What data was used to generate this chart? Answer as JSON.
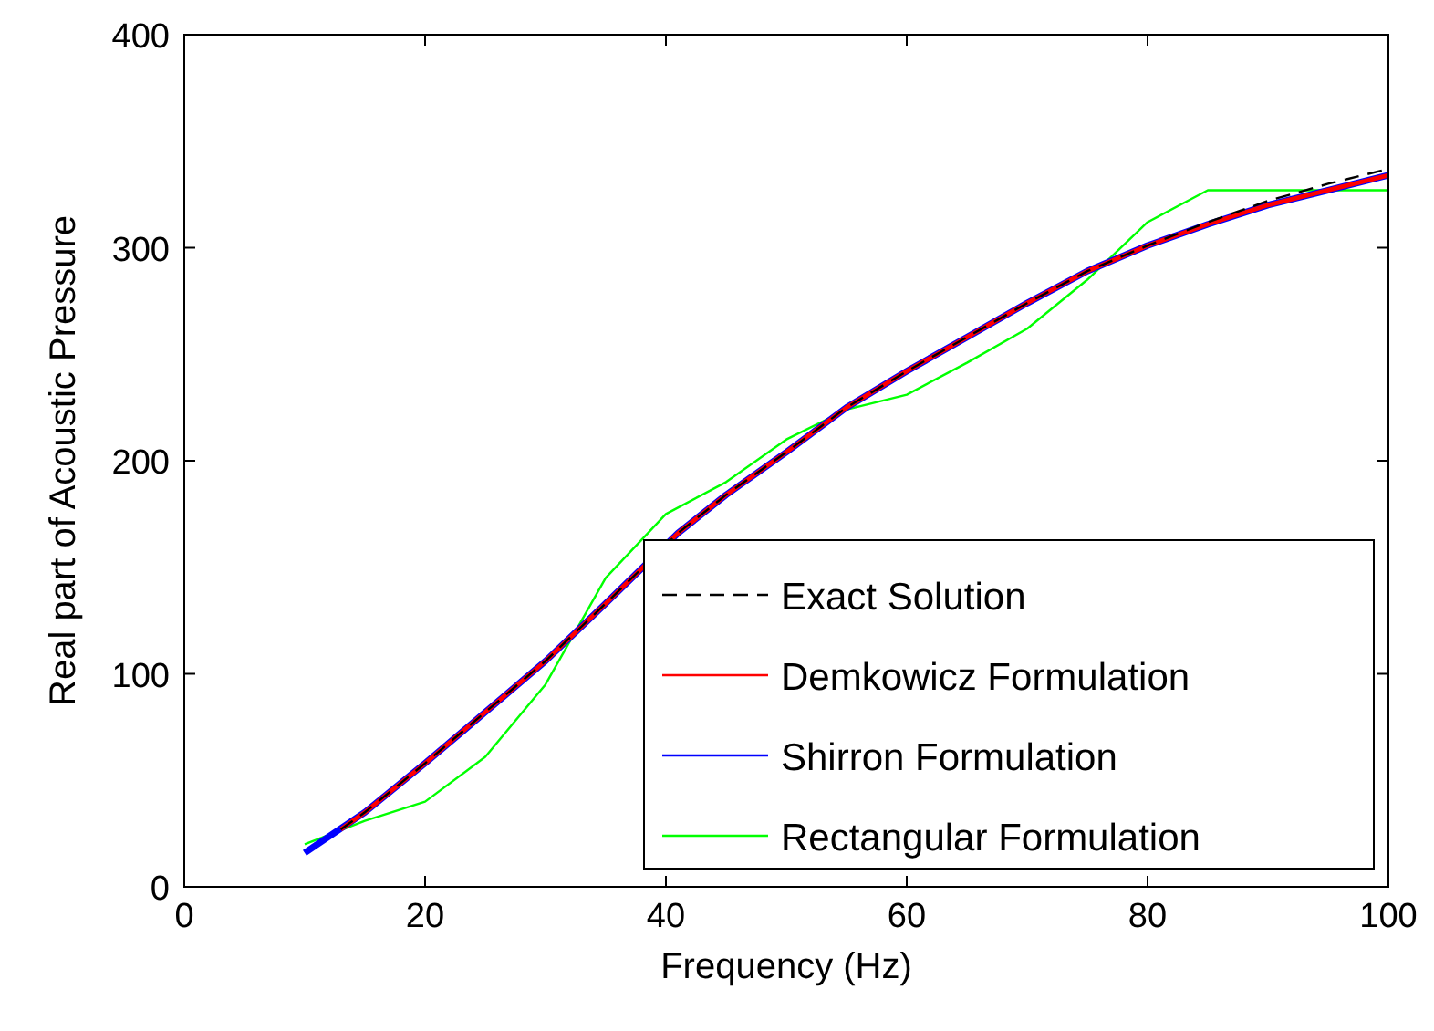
{
  "chart_data": {
    "type": "line",
    "xlabel": "Frequency (Hz)",
    "ylabel": "Real part of Acoustic Pressure",
    "xlim": [
      0,
      100
    ],
    "xticks": [
      0,
      20,
      40,
      60,
      80,
      100
    ],
    "ylim": [
      0,
      400
    ],
    "yticks": [
      0,
      100,
      200,
      300,
      400
    ],
    "grid": false,
    "legend": "bottom right",
    "series": [
      {
        "name": "Exact Solution",
        "color": "#000000",
        "line_style": "dashed",
        "x": [
          13,
          15,
          20,
          25,
          30,
          35,
          41,
          45,
          50,
          55,
          60,
          65,
          70,
          75,
          80,
          85,
          90,
          95,
          100
        ],
        "values": [
          27,
          35,
          58,
          82,
          106,
          133,
          166,
          184,
          204,
          225,
          242,
          258,
          274,
          289,
          301,
          312,
          322,
          330,
          337
        ]
      },
      {
        "name": "Demkowicz Formulation",
        "color": "#ff0000",
        "line_style": "solid",
        "x": [
          13,
          15,
          20,
          25,
          30,
          35,
          41,
          45,
          50,
          55,
          60,
          65,
          70,
          75,
          80,
          85,
          90,
          95,
          100
        ],
        "values": [
          27,
          35,
          58,
          82,
          106,
          133,
          166,
          184,
          204,
          225,
          242,
          258,
          274,
          289,
          301,
          311,
          320,
          327,
          334
        ]
      },
      {
        "name": "Shirron Formulation",
        "color": "#0000ff",
        "line_style": "solid",
        "x": [
          10,
          15,
          20,
          25,
          30,
          35,
          41,
          45,
          50,
          55,
          60,
          65,
          70,
          75,
          80,
          85,
          90,
          95,
          100
        ],
        "values": [
          16,
          35,
          58,
          82,
          106,
          133,
          166,
          184,
          204,
          225,
          242,
          258,
          274,
          289,
          301,
          311,
          320,
          327,
          334
        ]
      },
      {
        "name": "Rectangular Formulation",
        "color": "#00ff00",
        "line_style": "solid",
        "x": [
          10,
          15,
          20,
          25,
          30,
          35,
          40,
          45,
          50,
          55,
          60,
          65,
          70,
          75,
          80,
          85,
          90,
          95,
          100
        ],
        "values": [
          20,
          31,
          40,
          61,
          95,
          145,
          175,
          190,
          210,
          224,
          231,
          246,
          262,
          285,
          312,
          327,
          327,
          327,
          327
        ]
      }
    ]
  }
}
